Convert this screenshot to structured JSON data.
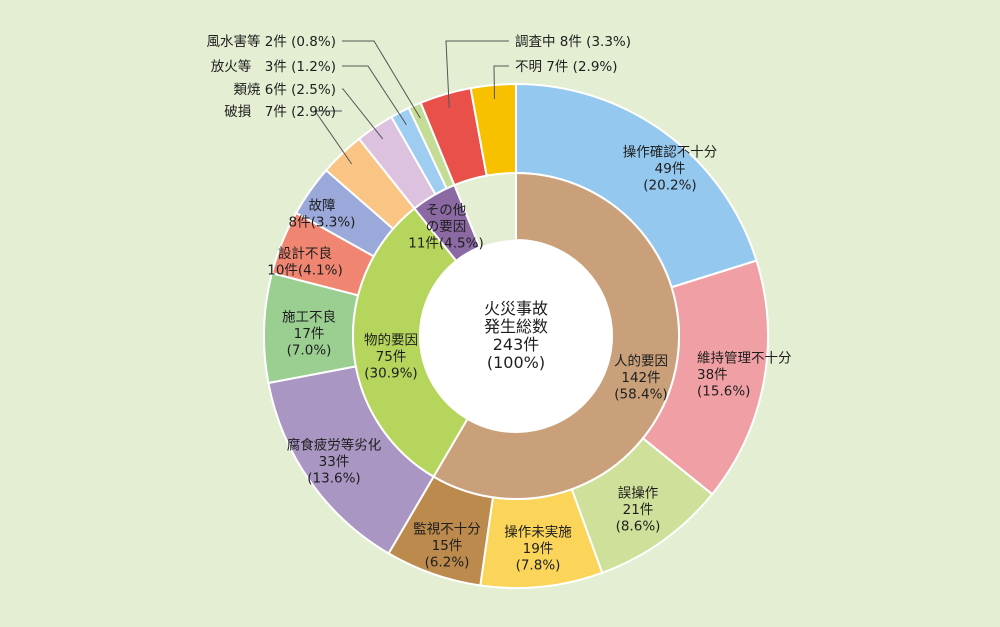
{
  "chart_data": {
    "type": "pie",
    "center_label": [
      "火災事故",
      "発生総数",
      "243件",
      "(100%)"
    ],
    "total": 243,
    "inner": [
      {
        "label": [
          "人的要因",
          "142件",
          "(58.4%)"
        ],
        "value": 142,
        "color": "#c9a07a"
      },
      {
        "label": [
          "物的要因",
          "75件",
          "(30.9%)"
        ],
        "value": 75,
        "color": "#b6d55c"
      },
      {
        "label": [
          "その他",
          "の要因",
          "11件(4.5%)"
        ],
        "value": 11,
        "color": "#8b6aa3"
      }
    ],
    "outer": [
      {
        "label": [
          "操作確認不十分",
          "49件",
          "(20.2%)"
        ],
        "value": 49,
        "color": "#94c8ee"
      },
      {
        "label": [
          "維持管理不十分",
          "38件",
          "(15.6%)"
        ],
        "value": 38,
        "color": "#f0a0a4"
      },
      {
        "label": [
          "誤操作",
          "21件",
          "(8.6%)"
        ],
        "value": 21,
        "color": "#cfe09a"
      },
      {
        "label": [
          "操作未実施",
          "19件",
          "(7.8%)"
        ],
        "value": 19,
        "color": "#fad55a"
      },
      {
        "label": [
          "監視不十分",
          "15件",
          "(6.2%)"
        ],
        "value": 15,
        "color": "#bb8a4c"
      },
      {
        "label": [
          "腐食疲労等劣化",
          "33件",
          "(13.6%)"
        ],
        "value": 33,
        "color": "#a996c2"
      },
      {
        "label": [
          "施工不良",
          "17件",
          "(7.0%)"
        ],
        "value": 17,
        "color": "#9bcf92"
      },
      {
        "label": [
          "設計不良",
          "10件(4.1%)"
        ],
        "value": 10,
        "color": "#f08672"
      },
      {
        "label": [
          "故障",
          "8件(3.3%)"
        ],
        "value": 8,
        "color": "#9aa8da"
      },
      {
        "label": [
          "破損　7件 (2.9%)"
        ],
        "value": 7,
        "color": "#f9c484"
      },
      {
        "label": [
          "類焼 6件 (2.5%)"
        ],
        "value": 6,
        "color": "#dcc2de"
      },
      {
        "label": [
          "放火等　3件 (1.2%)"
        ],
        "value": 3,
        "color": "#9fcdf2"
      },
      {
        "label": [
          "風水害等 2件 (0.8%)"
        ],
        "value": 2,
        "color": "#c4dc96"
      },
      {
        "label": [
          "調査中 8件 (3.3%)"
        ],
        "value": 8,
        "color": "#e9504a"
      },
      {
        "label": [
          "不明 7件 (2.9%)"
        ],
        "value": 7,
        "color": "#f7c100"
      }
    ]
  }
}
